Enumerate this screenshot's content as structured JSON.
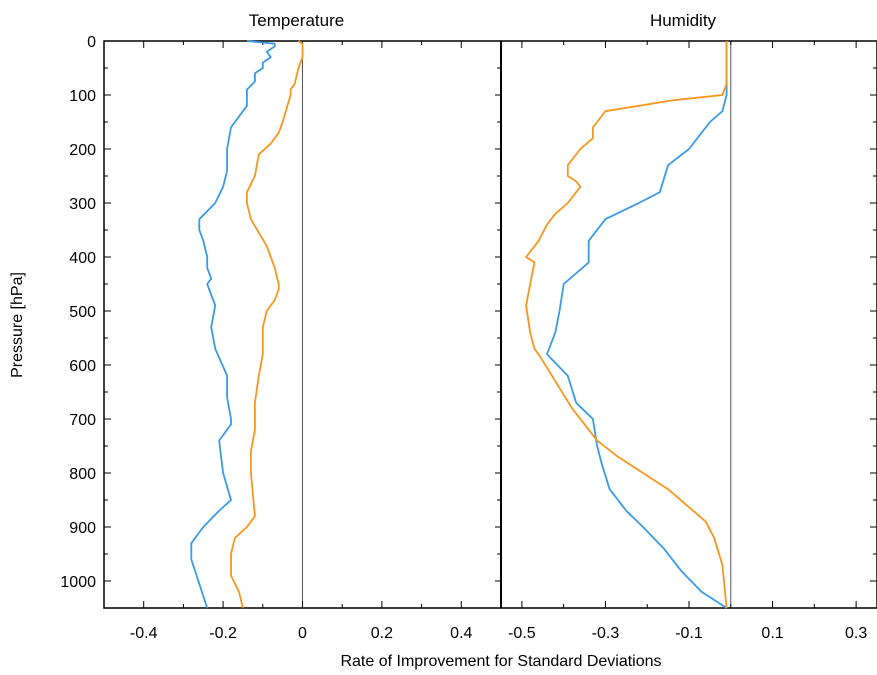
{
  "chart_data": {
    "type": "line",
    "xlabel": "Rate of Improvement for Standard Deviations",
    "ylabel": "Pressure [hPa]",
    "ylim": [
      0,
      1050
    ],
    "y_inverted": true,
    "yticks": [
      0,
      100,
      200,
      300,
      400,
      500,
      600,
      700,
      800,
      900,
      1000
    ],
    "grid": false,
    "series_colors": [
      "#3b9ae6",
      "#f5961e"
    ],
    "panels": [
      {
        "title": "Temperature",
        "xlim": [
          -0.5,
          0.5
        ],
        "xticks": [
          -0.4,
          -0.2,
          0,
          0.2,
          0.4
        ],
        "xtick_labels": [
          "-0.4",
          "-0.2",
          "0",
          "0.2",
          "0.4"
        ],
        "series": [
          {
            "x": [
              -0.14,
              -0.07,
              -0.07,
              -0.09,
              -0.08,
              -0.1,
              -0.1,
              -0.12,
              -0.12,
              -0.14,
              -0.14,
              -0.18,
              -0.19,
              -0.19,
              -0.2,
              -0.22,
              -0.26,
              -0.26,
              -0.25,
              -0.24,
              -0.24,
              -0.23,
              -0.24,
              -0.22,
              -0.23,
              -0.22,
              -0.19,
              -0.19,
              -0.18,
              -0.18,
              -0.21,
              -0.2,
              -0.18,
              -0.21,
              -0.25,
              -0.28,
              -0.28,
              -0.24
            ],
            "y": [
              0,
              5,
              10,
              20,
              30,
              40,
              50,
              60,
              75,
              90,
              120,
              160,
              200,
              240,
              270,
              300,
              330,
              350,
              370,
              400,
              420,
              440,
              450,
              490,
              530,
              570,
              620,
              660,
              700,
              710,
              740,
              800,
              850,
              870,
              900,
              930,
              960,
              1050
            ]
          },
          {
            "x": [
              -0.01,
              0.0,
              0.0,
              0.0,
              0.0,
              -0.01,
              -0.02,
              -0.03,
              -0.03,
              -0.05,
              -0.06,
              -0.08,
              -0.11,
              -0.12,
              -0.14,
              -0.14,
              -0.13,
              -0.09,
              -0.07,
              -0.06,
              -0.06,
              -0.07,
              -0.09,
              -0.1,
              -0.1,
              -0.11,
              -0.12,
              -0.12,
              -0.13,
              -0.13,
              -0.12,
              -0.14,
              -0.17,
              -0.18,
              -0.18,
              -0.16,
              -0.15
            ],
            "y": [
              0,
              5,
              10,
              20,
              30,
              50,
              80,
              90,
              100,
              150,
              170,
              190,
              210,
              250,
              280,
              300,
              330,
              380,
              420,
              450,
              460,
              480,
              500,
              530,
              580,
              620,
              670,
              720,
              760,
              800,
              880,
              900,
              920,
              950,
              990,
              1020,
              1050
            ]
          }
        ]
      },
      {
        "title": "Humidity",
        "xlim": [
          -0.55,
          0.35
        ],
        "xticks": [
          -0.5,
          -0.3,
          -0.1,
          0.1,
          0.3
        ],
        "xtick_labels": [
          "-0.5",
          "-0.3",
          "-0.1",
          "0.1",
          "0.3"
        ],
        "series": [
          {
            "x": [
              -0.01,
              -0.01,
              -0.01,
              -0.01,
              -0.01,
              -0.01,
              -0.02,
              -0.05,
              -0.1,
              -0.15,
              -0.17,
              -0.22,
              -0.3,
              -0.34,
              -0.34,
              -0.4,
              -0.41,
              -0.42,
              -0.43,
              -0.44,
              -0.39,
              -0.37,
              -0.33,
              -0.32,
              -0.31,
              -0.29,
              -0.25,
              -0.21,
              -0.16,
              -0.12,
              -0.07,
              -0.01
            ],
            "y": [
              0,
              20,
              40,
              60,
              80,
              100,
              130,
              150,
              200,
              230,
              280,
              300,
              330,
              370,
              410,
              450,
              500,
              540,
              560,
              580,
              620,
              670,
              700,
              750,
              780,
              830,
              870,
              900,
              940,
              980,
              1020,
              1050
            ]
          },
          {
            "x": [
              -0.01,
              -0.01,
              -0.01,
              -0.01,
              -0.01,
              -0.02,
              -0.08,
              -0.14,
              -0.3,
              -0.32,
              -0.33,
              -0.33,
              -0.36,
              -0.39,
              -0.39,
              -0.37,
              -0.36,
              -0.39,
              -0.42,
              -0.44,
              -0.46,
              -0.49,
              -0.47,
              -0.48,
              -0.49,
              -0.48,
              -0.47,
              -0.46,
              -0.42,
              -0.38,
              -0.32,
              -0.27,
              -0.15,
              -0.06,
              -0.04,
              -0.02,
              -0.01
            ],
            "y": [
              0,
              20,
              40,
              60,
              80,
              100,
              105,
              110,
              130,
              150,
              160,
              180,
              200,
              230,
              250,
              260,
              270,
              300,
              320,
              340,
              370,
              400,
              410,
              450,
              490,
              540,
              570,
              580,
              630,
              680,
              740,
              770,
              830,
              890,
              920,
              970,
              1050
            ]
          }
        ]
      }
    ]
  }
}
